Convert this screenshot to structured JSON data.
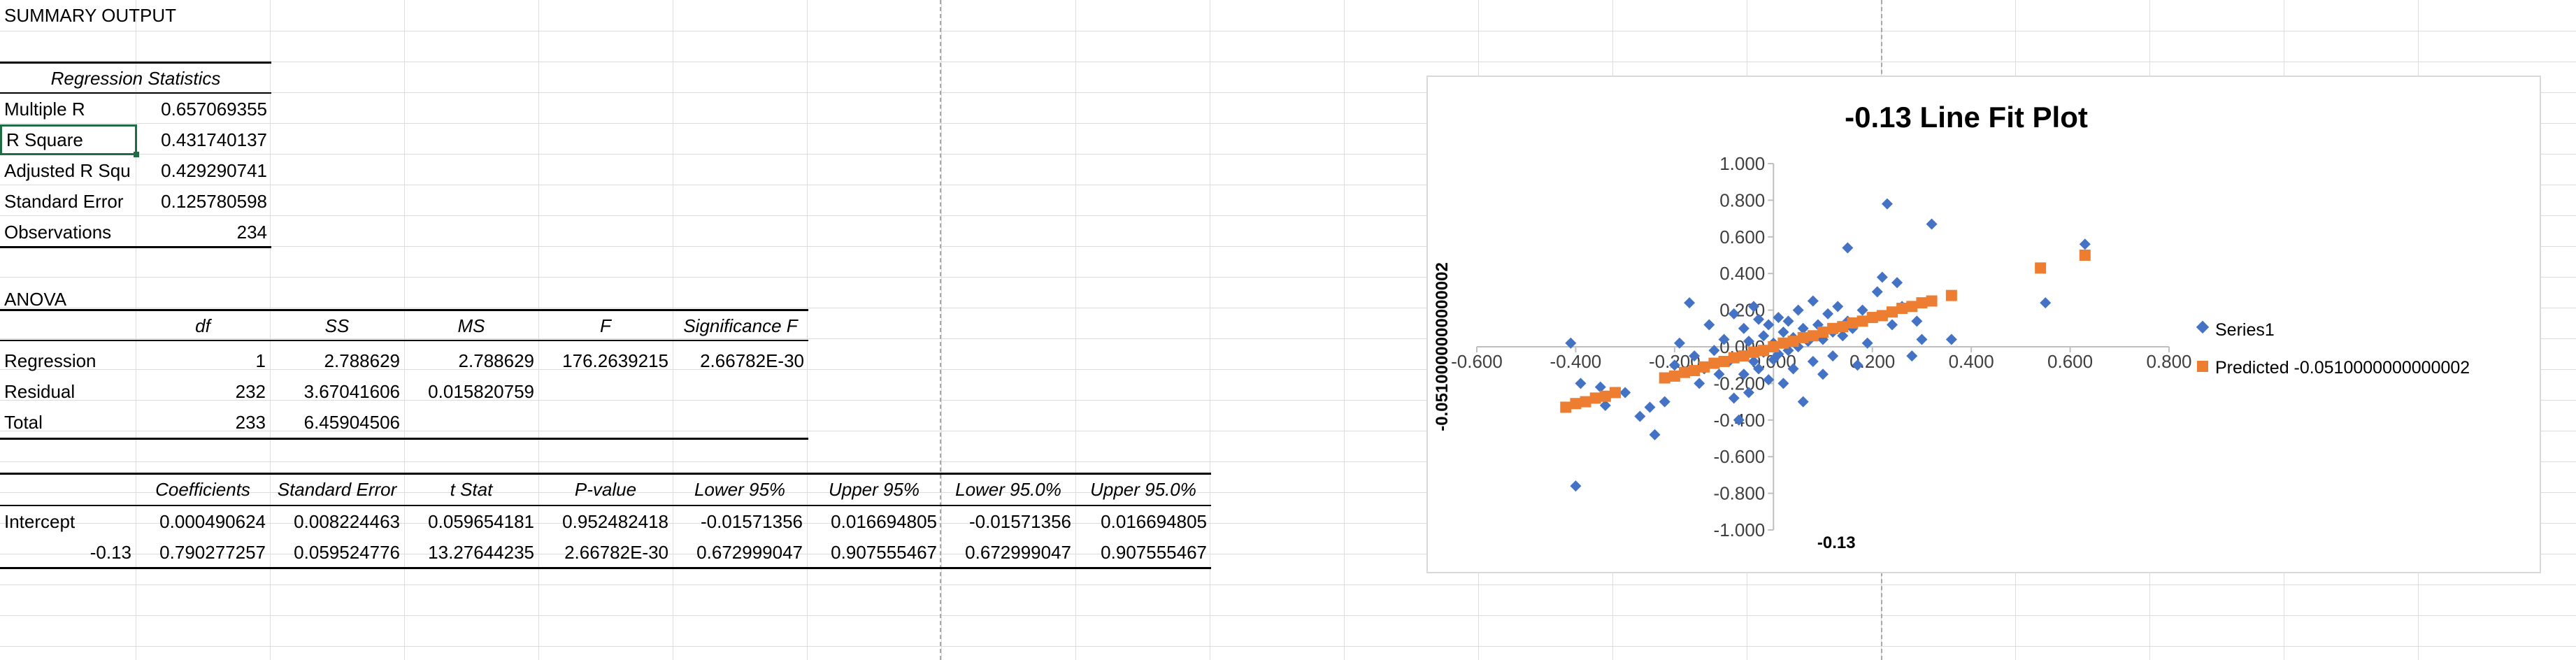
{
  "sheet": {
    "summary_title": "SUMMARY OUTPUT",
    "regression_statistics": {
      "header": "Regression Statistics",
      "rows": [
        {
          "label": "Multiple R",
          "value": "0.657069355"
        },
        {
          "label": "R Square",
          "value": "0.431740137"
        },
        {
          "label": "Adjusted R Squ",
          "value": "0.429290741"
        },
        {
          "label": "Standard Error",
          "value": "0.125780598"
        },
        {
          "label": "Observations",
          "value": "234"
        }
      ]
    },
    "anova": {
      "title": "ANOVA",
      "headers": [
        "df",
        "SS",
        "MS",
        "F",
        "Significance F"
      ],
      "rows": [
        {
          "label": "Regression",
          "values": [
            "1",
            "2.788629",
            "2.788629",
            "176.2639215",
            "2.66782E-30"
          ]
        },
        {
          "label": "Residual",
          "values": [
            "232",
            "3.67041606",
            "0.015820759",
            "",
            ""
          ]
        },
        {
          "label": "Total",
          "values": [
            "233",
            "6.45904506",
            "",
            "",
            ""
          ]
        }
      ]
    },
    "coefficients": {
      "headers": [
        "Coefficients",
        "Standard Error",
        "t Stat",
        "P-value",
        "Lower 95%",
        "Upper 95%",
        "Lower 95.0%",
        "Upper 95.0%"
      ],
      "rows": [
        {
          "label": "Intercept",
          "values": [
            "0.000490624",
            "0.008224463",
            "0.059654181",
            "0.952482418",
            "-0.01571356",
            "0.016694805",
            "-0.01571356",
            "0.016694805"
          ]
        },
        {
          "label": "-0.13",
          "values": [
            "0.790277257",
            "0.059524776",
            "13.27644235",
            "2.66782E-30",
            "0.672999047",
            "0.907555467",
            "0.672999047",
            "0.907555467"
          ]
        }
      ]
    },
    "selected_cell": "R Square"
  },
  "chart_data": {
    "type": "scatter",
    "title": "-0.13 Line Fit  Plot",
    "xlabel": "-0.13",
    "ylabel": "-0.0510000000000002",
    "xlim": [
      -0.6,
      0.8
    ],
    "ylim": [
      -1.0,
      1.0
    ],
    "x_ticks": [
      "-0.600",
      "-0.400",
      "-0.200",
      "0.000",
      "0.200",
      "0.400",
      "0.600",
      "0.800"
    ],
    "y_ticks": [
      "1.000",
      "0.800",
      "0.600",
      "0.400",
      "0.200",
      "0.000",
      "-0.200",
      "-0.400",
      "-0.600",
      "-0.800",
      "-1.000"
    ],
    "legend_position": "right",
    "series": [
      {
        "name": "Series1",
        "marker": "diamond",
        "color": "#4472c4",
        "points": [
          [
            -0.41,
            0.02
          ],
          [
            -0.4,
            -0.76
          ],
          [
            -0.39,
            -0.2
          ],
          [
            -0.36,
            -0.28
          ],
          [
            -0.35,
            -0.22
          ],
          [
            -0.34,
            -0.32
          ],
          [
            -0.3,
            -0.25
          ],
          [
            -0.27,
            -0.38
          ],
          [
            -0.25,
            -0.33
          ],
          [
            -0.24,
            -0.48
          ],
          [
            -0.22,
            -0.3
          ],
          [
            -0.2,
            -0.1
          ],
          [
            -0.19,
            0.02
          ],
          [
            -0.18,
            -0.14
          ],
          [
            -0.17,
            0.24
          ],
          [
            -0.16,
            -0.05
          ],
          [
            -0.15,
            -0.2
          ],
          [
            -0.14,
            -0.12
          ],
          [
            -0.13,
            0.12
          ],
          [
            -0.12,
            -0.02
          ],
          [
            -0.11,
            -0.15
          ],
          [
            -0.1,
            0.04
          ],
          [
            -0.09,
            -0.08
          ],
          [
            -0.08,
            0.18
          ],
          [
            -0.08,
            -0.28
          ],
          [
            -0.07,
            -0.05
          ],
          [
            -0.07,
            -0.4
          ],
          [
            -0.06,
            0.1
          ],
          [
            -0.06,
            -0.15
          ],
          [
            -0.05,
            0.03
          ],
          [
            -0.05,
            -0.25
          ],
          [
            -0.04,
            0.22
          ],
          [
            -0.04,
            -0.08
          ],
          [
            -0.03,
            0.15
          ],
          [
            -0.03,
            -0.12
          ],
          [
            -0.02,
            0.06
          ],
          [
            -0.02,
            -0.03
          ],
          [
            -0.01,
            0.12
          ],
          [
            -0.01,
            -0.18
          ],
          [
            0.0,
            0.02
          ],
          [
            0.0,
            -0.07
          ],
          [
            0.01,
            0.16
          ],
          [
            0.01,
            -0.04
          ],
          [
            0.02,
            0.08
          ],
          [
            0.02,
            -0.2
          ],
          [
            0.03,
            0.14
          ],
          [
            0.03,
            -0.02
          ],
          [
            0.04,
            0.05
          ],
          [
            0.04,
            -0.12
          ],
          [
            0.05,
            0.2
          ],
          [
            0.05,
            0.0
          ],
          [
            0.06,
            0.1
          ],
          [
            0.06,
            -0.3
          ],
          [
            0.07,
            0.03
          ],
          [
            0.08,
            0.25
          ],
          [
            0.08,
            -0.08
          ],
          [
            0.09,
            0.12
          ],
          [
            0.1,
            0.04
          ],
          [
            0.1,
            -0.15
          ],
          [
            0.11,
            0.18
          ],
          [
            0.12,
            0.08
          ],
          [
            0.12,
            -0.05
          ],
          [
            0.13,
            0.22
          ],
          [
            0.14,
            0.06
          ],
          [
            0.15,
            0.14
          ],
          [
            0.15,
            0.54
          ],
          [
            0.16,
            0.1
          ],
          [
            0.17,
            -0.1
          ],
          [
            0.18,
            0.2
          ],
          [
            0.19,
            0.02
          ],
          [
            0.2,
            0.16
          ],
          [
            0.21,
            0.3
          ],
          [
            0.22,
            0.38
          ],
          [
            0.23,
            0.78
          ],
          [
            0.24,
            0.12
          ],
          [
            0.25,
            0.35
          ],
          [
            0.26,
            0.22
          ],
          [
            0.28,
            -0.05
          ],
          [
            0.29,
            0.14
          ],
          [
            0.3,
            0.04
          ],
          [
            0.32,
            0.67
          ],
          [
            0.36,
            0.04
          ],
          [
            0.55,
            0.24
          ],
          [
            0.63,
            0.56
          ]
        ]
      },
      {
        "name": "Predicted -0.0510000000000002",
        "marker": "square",
        "color": "#ed7d31",
        "points": [
          [
            -0.42,
            -0.33
          ],
          [
            -0.4,
            -0.31
          ],
          [
            -0.38,
            -0.3
          ],
          [
            -0.36,
            -0.28
          ],
          [
            -0.34,
            -0.27
          ],
          [
            -0.32,
            -0.25
          ],
          [
            -0.22,
            -0.17
          ],
          [
            -0.2,
            -0.16
          ],
          [
            -0.18,
            -0.14
          ],
          [
            -0.16,
            -0.13
          ],
          [
            -0.14,
            -0.11
          ],
          [
            -0.12,
            -0.09
          ],
          [
            -0.1,
            -0.08
          ],
          [
            -0.08,
            -0.06
          ],
          [
            -0.06,
            -0.05
          ],
          [
            -0.04,
            -0.03
          ],
          [
            -0.02,
            -0.02
          ],
          [
            0.0,
            0.0
          ],
          [
            0.02,
            0.02
          ],
          [
            0.04,
            0.03
          ],
          [
            0.06,
            0.05
          ],
          [
            0.08,
            0.06
          ],
          [
            0.1,
            0.08
          ],
          [
            0.12,
            0.1
          ],
          [
            0.14,
            0.11
          ],
          [
            0.16,
            0.13
          ],
          [
            0.18,
            0.14
          ],
          [
            0.2,
            0.16
          ],
          [
            0.22,
            0.17
          ],
          [
            0.24,
            0.19
          ],
          [
            0.26,
            0.21
          ],
          [
            0.28,
            0.22
          ],
          [
            0.3,
            0.24
          ],
          [
            0.32,
            0.25
          ],
          [
            0.36,
            0.28
          ],
          [
            0.54,
            0.43
          ],
          [
            0.63,
            0.5
          ]
        ]
      }
    ]
  }
}
